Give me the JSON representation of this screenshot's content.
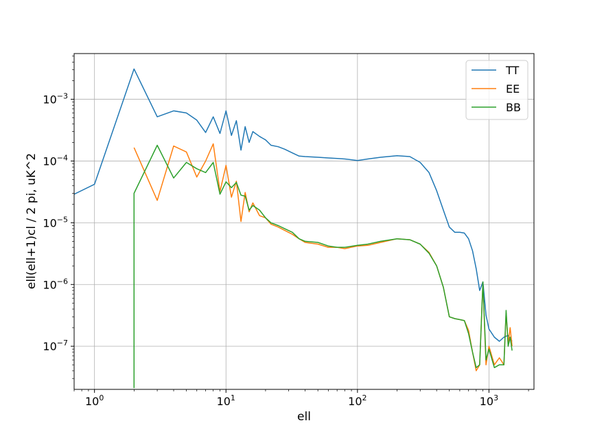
{
  "chart_data": {
    "type": "line",
    "title": "",
    "xlabel": "ell",
    "ylabel": "ell(ell+1)cl / 2 pi, uK^2",
    "xscale": "log",
    "yscale": "log",
    "xlim": [
      0.7,
      2200
    ],
    "ylim": [
      2e-08,
      0.0055
    ],
    "grid": true,
    "legend_position": "top-right",
    "x_ticks": [
      {
        "value": 1,
        "base": "10",
        "exp": "0"
      },
      {
        "value": 10,
        "base": "10",
        "exp": "1"
      },
      {
        "value": 100,
        "base": "10",
        "exp": "2"
      },
      {
        "value": 1000,
        "base": "10",
        "exp": "3"
      }
    ],
    "y_ticks": [
      {
        "value": 1e-07,
        "base": "10",
        "exp": "−7"
      },
      {
        "value": 1e-06,
        "base": "10",
        "exp": "−6"
      },
      {
        "value": 1e-05,
        "base": "10",
        "exp": "−5"
      },
      {
        "value": 0.0001,
        "base": "10",
        "exp": "−4"
      },
      {
        "value": 0.001,
        "base": "10",
        "exp": "−3"
      }
    ],
    "series": [
      {
        "name": "TT",
        "color": "#1f77b4",
        "points": [
          [
            0.7,
            2.9e-05
          ],
          [
            1,
            4.2e-05
          ],
          [
            2,
            0.0031
          ],
          [
            3,
            0.00052
          ],
          [
            4,
            0.00065
          ],
          [
            5,
            0.0006
          ],
          [
            6,
            0.00046
          ],
          [
            7,
            0.00029
          ],
          [
            8,
            0.00052
          ],
          [
            9,
            0.00028
          ],
          [
            10,
            0.00065
          ],
          [
            11,
            0.00026
          ],
          [
            12,
            0.00045
          ],
          [
            13,
            0.00015
          ],
          [
            14,
            0.00036
          ],
          [
            15,
            0.0002
          ],
          [
            16,
            0.0003
          ],
          [
            18,
            0.00025
          ],
          [
            20,
            0.00022
          ],
          [
            22,
            0.00018
          ],
          [
            25,
            0.00017
          ],
          [
            28,
            0.000155
          ],
          [
            32,
            0.000135
          ],
          [
            36,
            0.00012
          ],
          [
            40,
            0.000118
          ],
          [
            50,
            0.000115
          ],
          [
            60,
            0.000112
          ],
          [
            70,
            0.00011
          ],
          [
            80,
            0.000108
          ],
          [
            100,
            0.000102
          ],
          [
            120,
            0.000108
          ],
          [
            150,
            0.000115
          ],
          [
            200,
            0.000122
          ],
          [
            250,
            0.000118
          ],
          [
            300,
            9.5e-05
          ],
          [
            350,
            6.5e-05
          ],
          [
            400,
            3.3e-05
          ],
          [
            450,
            1.6e-05
          ],
          [
            500,
            8.5e-06
          ],
          [
            550,
            7e-06
          ],
          [
            600,
            7e-06
          ],
          [
            650,
            6.8e-06
          ],
          [
            700,
            5.5e-06
          ],
          [
            750,
            3.5e-06
          ],
          [
            800,
            1.8e-06
          ],
          [
            850,
            8e-07
          ],
          [
            900,
            1.1e-06
          ],
          [
            950,
            3.2e-07
          ],
          [
            1000,
            1.9e-07
          ],
          [
            1100,
            1.4e-07
          ],
          [
            1200,
            1.2e-07
          ],
          [
            1300,
            1.4e-07
          ],
          [
            1400,
            1.5e-07
          ],
          [
            1500,
            1.2e-07
          ]
        ]
      },
      {
        "name": "EE",
        "color": "#ff7f0e",
        "points": [
          [
            2,
            0.000165
          ],
          [
            3,
            2.3e-05
          ],
          [
            4,
            0.000175
          ],
          [
            5,
            0.00014
          ],
          [
            6,
            5.5e-05
          ],
          [
            7,
            0.0001
          ],
          [
            8,
            0.00019
          ],
          [
            9,
            3.2e-05
          ],
          [
            10,
            8.5e-05
          ],
          [
            11,
            2.6e-05
          ],
          [
            12,
            4.7e-05
          ],
          [
            13,
            1.05e-05
          ],
          [
            14,
            3.1e-05
          ],
          [
            15,
            1.5e-05
          ],
          [
            16,
            2.1e-05
          ],
          [
            18,
            1.3e-05
          ],
          [
            20,
            1.2e-05
          ],
          [
            22,
            9.5e-06
          ],
          [
            25,
            8.5e-06
          ],
          [
            28,
            7.5e-06
          ],
          [
            32,
            6.5e-06
          ],
          [
            36,
            5.5e-06
          ],
          [
            40,
            4.8e-06
          ],
          [
            50,
            4.5e-06
          ],
          [
            60,
            4e-06
          ],
          [
            70,
            4e-06
          ],
          [
            80,
            3.8e-06
          ],
          [
            100,
            4.2e-06
          ],
          [
            120,
            4.3e-06
          ],
          [
            150,
            4.8e-06
          ],
          [
            200,
            5.5e-06
          ],
          [
            250,
            5.3e-06
          ],
          [
            300,
            4.5e-06
          ],
          [
            350,
            3.3e-06
          ],
          [
            400,
            2e-06
          ],
          [
            450,
            9e-07
          ],
          [
            500,
            3e-07
          ],
          [
            550,
            2.8e-07
          ],
          [
            600,
            2.7e-07
          ],
          [
            650,
            2.6e-07
          ],
          [
            700,
            1.8e-07
          ],
          [
            750,
            8e-08
          ],
          [
            800,
            4e-08
          ],
          [
            850,
            5e-08
          ],
          [
            900,
            1.05e-06
          ],
          [
            950,
            5e-08
          ],
          [
            1000,
            1e-07
          ],
          [
            1100,
            5e-08
          ],
          [
            1200,
            6.5e-08
          ],
          [
            1300,
            5e-08
          ],
          [
            1350,
            3.5e-07
          ],
          [
            1400,
            1.1e-07
          ],
          [
            1450,
            2e-07
          ],
          [
            1500,
            1e-07
          ]
        ]
      },
      {
        "name": "BB",
        "color": "#2ca02c",
        "points": [
          [
            2,
            2.1e-08
          ],
          [
            2,
            3e-05
          ],
          [
            3,
            0.00018
          ],
          [
            4,
            5.3e-05
          ],
          [
            5,
            9.5e-05
          ],
          [
            6,
            7.5e-05
          ],
          [
            7,
            6.5e-05
          ],
          [
            8,
            9.5e-05
          ],
          [
            9,
            2.9e-05
          ],
          [
            10,
            4.6e-05
          ],
          [
            11,
            3.7e-05
          ],
          [
            12,
            4.5e-05
          ],
          [
            13,
            2.8e-05
          ],
          [
            14,
            2.7e-05
          ],
          [
            15,
            1.6e-05
          ],
          [
            16,
            1.9e-05
          ],
          [
            18,
            1.6e-05
          ],
          [
            20,
            1.2e-05
          ],
          [
            22,
            1e-05
          ],
          [
            25,
            9e-06
          ],
          [
            28,
            8e-06
          ],
          [
            32,
            7e-06
          ],
          [
            36,
            5.5e-06
          ],
          [
            40,
            5e-06
          ],
          [
            50,
            4.8e-06
          ],
          [
            60,
            4.2e-06
          ],
          [
            70,
            4e-06
          ],
          [
            80,
            4e-06
          ],
          [
            100,
            4.3e-06
          ],
          [
            120,
            4.5e-06
          ],
          [
            150,
            5e-06
          ],
          [
            200,
            5.5e-06
          ],
          [
            250,
            5.3e-06
          ],
          [
            300,
            4.5e-06
          ],
          [
            350,
            3.2e-06
          ],
          [
            400,
            2e-06
          ],
          [
            450,
            9e-07
          ],
          [
            500,
            3e-07
          ],
          [
            550,
            2.8e-07
          ],
          [
            600,
            2.7e-07
          ],
          [
            650,
            2.6e-07
          ],
          [
            700,
            1.6e-07
          ],
          [
            750,
            8e-08
          ],
          [
            800,
            4.5e-08
          ],
          [
            850,
            5e-08
          ],
          [
            900,
            1.1e-06
          ],
          [
            950,
            6e-08
          ],
          [
            1000,
            9e-08
          ],
          [
            1100,
            4.5e-08
          ],
          [
            1200,
            5e-08
          ],
          [
            1300,
            5e-08
          ],
          [
            1350,
            3.8e-07
          ],
          [
            1400,
            1e-07
          ],
          [
            1450,
            1.4e-07
          ],
          [
            1500,
            8.5e-08
          ]
        ]
      }
    ]
  }
}
